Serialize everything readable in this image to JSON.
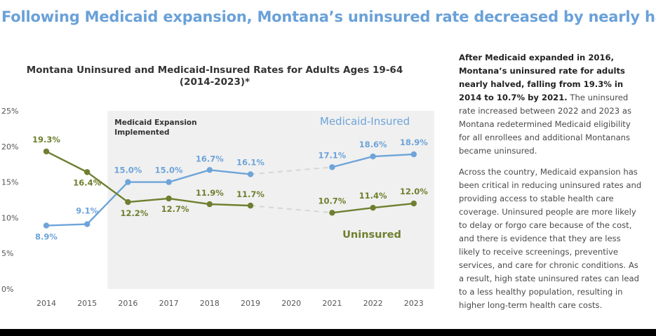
{
  "headline": "Following Medicaid expansion, Montana’s uninsured rate decreased by nearly half.",
  "sidebar": {
    "p1_bold": "After Medicaid expanded in 2016, Montana’s uninsured rate for adults nearly halved, falling from 19.3% in 2014 to 10.7% by 2021.",
    "p1_rest": " The uninsured rate increased between 2022 and 2023 as Montana redetermined Medicaid eligibility for all enrollees and additional Montanans became uninsured.",
    "p2": "Across the country, Medicaid expansion has been critical in reducing uninsured rates and providing access to stable health care coverage. Uninsured people are more likely to delay or forgo care because of the cost, and there is evidence that they are less likely to receive screenings, preventive services, and care for chronic conditions. As a result, high state uninsured rates can lead to a less healthy population, resulting in higher long-term health care costs."
  },
  "chart_data": {
    "type": "line",
    "title_line1": "Montana Uninsured and Medicaid-Insured Rates for Adults Ages 19-64",
    "title_line2": "(2014-2023)*",
    "categories": [
      "2014",
      "2015",
      "2016",
      "2017",
      "2018",
      "2019",
      "2020",
      "2021",
      "2022",
      "2023"
    ],
    "ylim": [
      0,
      25
    ],
    "yticks": [
      0,
      5,
      10,
      15,
      20,
      25
    ],
    "ytick_labels": [
      "0%",
      "5%",
      "10%",
      "15%",
      "20%",
      "25%"
    ],
    "grid": false,
    "shaded_region": {
      "from": "2016",
      "label_line1": "Medicaid Expansion",
      "label_line2": "Implemented"
    },
    "series": [
      {
        "name": "Medicaid-Insured",
        "color": "#6ea4d9",
        "values": [
          8.9,
          9.1,
          15.0,
          15.0,
          16.7,
          16.1,
          null,
          17.1,
          18.6,
          18.9
        ],
        "labels": [
          "8.9%",
          "9.1%",
          "15.0%",
          "15.0%",
          "16.7%",
          "16.1%",
          null,
          "17.1%",
          "18.6%",
          "18.9%"
        ]
      },
      {
        "name": "Uninsured",
        "color": "#6e7f2f",
        "values": [
          19.3,
          16.4,
          12.2,
          12.7,
          11.9,
          11.7,
          null,
          10.7,
          11.4,
          12.0
        ],
        "labels": [
          "19.3%",
          "16.4%",
          "12.2%",
          "12.7%",
          "11.9%",
          "11.7%",
          null,
          "10.7%",
          "11.4%",
          "12.0%"
        ]
      }
    ]
  }
}
